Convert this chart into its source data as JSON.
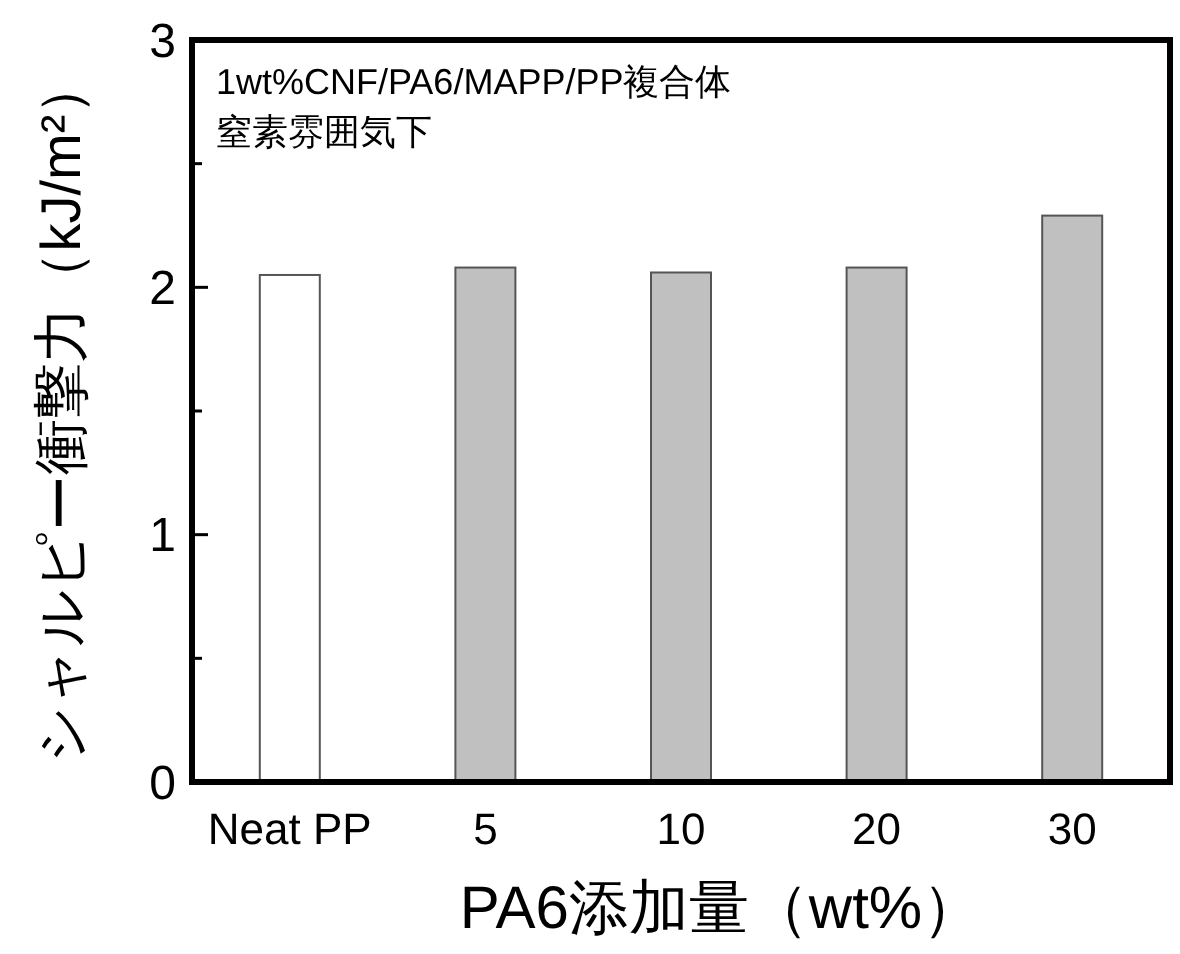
{
  "chart_data": {
    "type": "bar",
    "xlabel": "PA6添加量（wt%）",
    "ylabel": "シャルピー衝撃力（kJ/m²）",
    "annotations": [
      "1wt%CNF/PA6/MAPP/PP複合体",
      "窒素雰囲気下"
    ],
    "categories": [
      "Neat PP",
      "5",
      "10",
      "20",
      "30"
    ],
    "values": [
      2.05,
      2.08,
      2.06,
      2.08,
      2.29
    ],
    "colors": [
      "#ffffff",
      "#c0c0c0",
      "#c0c0c0",
      "#c0c0c0",
      "#c0c0c0"
    ],
    "ylim": [
      0,
      3
    ],
    "yticks": [
      0,
      {
        "value": 0.5,
        "label": null
      },
      1,
      {
        "value": 1.5,
        "label": null
      },
      2,
      {
        "value": 2.5,
        "label": null
      },
      3
    ],
    "grid": false
  }
}
